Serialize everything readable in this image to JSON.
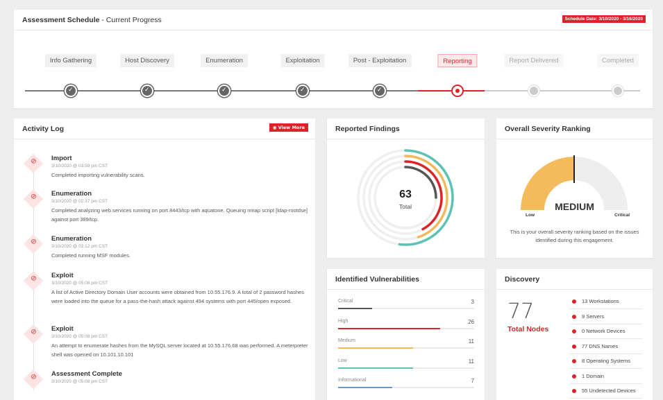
{
  "schedule": {
    "title_bold": "Assessment Schedule",
    "title_rest": " - Current Progress",
    "date_badge": "Schedule Date: 3/10/2020 - 3/16/2020",
    "steps": [
      {
        "label": "Info Gathering",
        "state": "done"
      },
      {
        "label": "Host Discovery",
        "state": "done"
      },
      {
        "label": "Enumeration",
        "state": "done"
      },
      {
        "label": "Exploitation",
        "state": "done"
      },
      {
        "label": "Post - Exploitation",
        "state": "done"
      },
      {
        "label": "Reporting",
        "state": "current"
      },
      {
        "label": "Report Delivered",
        "state": "future"
      },
      {
        "label": "Completed",
        "state": "future"
      }
    ]
  },
  "activity": {
    "title": "Activity Log",
    "view_more": "View More",
    "view_more_icon": "eye-icon",
    "entry_icon": "check-circle-icon",
    "entries": [
      {
        "title": "Import",
        "time": "3/10/2020 @ 03:59 pm CST",
        "desc": "Completed importing vulnerability scans."
      },
      {
        "title": "Enumeration",
        "time": "3/10/2020 @ 02:37 pm CST",
        "desc": "Completed analyzing web services running on port 8443/tcp with aquatone. Queuing nmap script [ldap-rootdse] against port 389/tcp."
      },
      {
        "title": "Enumeration",
        "time": "3/10/2020 @ 02:12 pm CST",
        "desc": "Completed running MSF modules."
      },
      {
        "title": "Exploit",
        "time": "3/10/2020 @ 05:08 pm CST",
        "desc": "A list of Active Directory Domain User accounts were obtained from 10.55.176.9. A total of 2 password hashes were loaded into the queue for a pass-the-hash attack against 494 systems  with port 445/open exposed."
      },
      {
        "title": "Exploit",
        "time": "3/10/2020 @ 05:08 pm CST",
        "desc": "An attempt to enumerate hashes from the MySQL server located at 10.55.176.68  was performed. A meterpreter shell was opened on 10.101.10.101"
      },
      {
        "title": "Assessment Complete",
        "time": "3/10/2020 @ 05:08 pm CST",
        "desc": ""
      }
    ]
  },
  "findings": {
    "title": "Reported Findings",
    "total": "63",
    "total_label": "Total",
    "rings": [
      {
        "fraction": 0.52,
        "color": "#5bc2b5"
      },
      {
        "fraction": 0.45,
        "color": "#f0b95a"
      },
      {
        "fraction": 0.42,
        "color": "#d9252a"
      },
      {
        "fraction": 0.25,
        "color": "#555555"
      }
    ]
  },
  "severity": {
    "title": "Overall Severity Ranking",
    "ranking": "MEDIUM",
    "low_label": "Low",
    "critical_label": "Critical",
    "level_fraction": 0.5,
    "fill_color": "#f4bb5c",
    "description": "This is your overall severity ranking based on the issues identified during this engagement."
  },
  "vulnerabilities": {
    "title": "Identified Vulnerabilities",
    "max": 26,
    "items": [
      {
        "label": "Critical",
        "count": 3,
        "color": "#555555",
        "fraction": 0.25
      },
      {
        "label": "High",
        "count": 26,
        "color": "#d9252a",
        "fraction": 0.75
      },
      {
        "label": "Medium",
        "count": 11,
        "color": "#f0b95a",
        "fraction": 0.55
      },
      {
        "label": "Low",
        "count": 11,
        "color": "#5bc2b5",
        "fraction": 0.55
      },
      {
        "label": "Informational",
        "count": 7,
        "color": "#5b9bd5",
        "fraction": 0.4
      }
    ]
  },
  "discovery": {
    "title": "Discovery",
    "total": "77",
    "total_label": "Total Nodes",
    "items": [
      "13 Workstations",
      "9 Servers",
      "0 Network Devices",
      "77 DNS Names",
      "8 Operating Systems",
      "1 Domain",
      "55 Undetected Devices"
    ]
  }
}
